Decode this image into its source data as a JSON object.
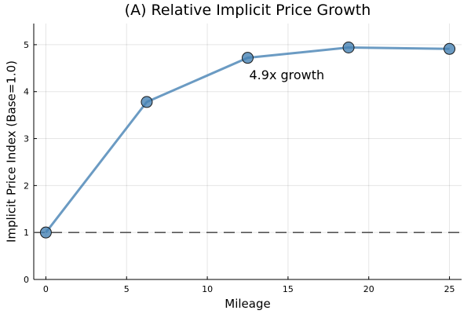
{
  "chart_data": {
    "type": "line",
    "title": "(A) Relative Implicit Price Growth",
    "xlabel": "Mileage",
    "ylabel": "Implicit Price Index (Base=1.0)",
    "xlim": [
      -0.75,
      25.75
    ],
    "ylim": [
      0,
      5.45
    ],
    "x_ticks": [
      0,
      5,
      10,
      15,
      20,
      25
    ],
    "y_ticks": [
      0,
      1,
      2,
      3,
      4,
      5
    ],
    "grid": true,
    "legend": "none",
    "series": [
      {
        "x": [
          0,
          6.25,
          12.5,
          18.75,
          25
        ],
        "values": [
          1.0,
          3.78,
          4.72,
          4.94,
          4.91
        ],
        "color": "#4682b4",
        "marker": "circle"
      }
    ],
    "reference_line": {
      "y": 1.0,
      "style": "dashed",
      "color": "#555555"
    },
    "annotation": {
      "text": "4.9x growth",
      "x": 12.5,
      "y": 4.35
    }
  }
}
